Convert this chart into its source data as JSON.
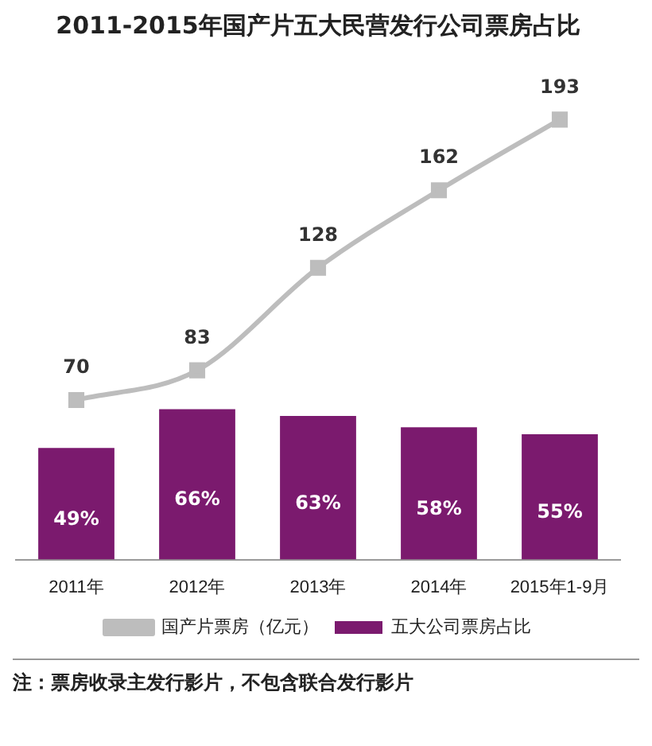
{
  "chart_data": {
    "type": "bar",
    "title": "2011-2015年国产片五大民营发行公司票房占比",
    "categories": [
      "2011年",
      "2012年",
      "2013年",
      "2014年",
      "2015年1-9月"
    ],
    "tick_labels": "x",
    "legend": "bottom",
    "series": [
      {
        "name": "五大公司票房占比",
        "color": "#7b1a6e",
        "values": [
          49,
          66,
          63,
          58,
          55
        ],
        "value_labels": [
          "49%",
          "66%",
          "63%",
          "58%",
          "55%"
        ]
      },
      {
        "name": "国产片票房（亿元）",
        "type": "line",
        "marker": "square",
        "color": "#bdbdbd",
        "values": [
          70,
          83,
          128,
          162,
          193
        ],
        "value_labels": [
          "70",
          "83",
          "128",
          "162",
          "193"
        ]
      }
    ],
    "annotations": [
      "注：票房收录主发行影片，不包含联合发行影片"
    ]
  }
}
